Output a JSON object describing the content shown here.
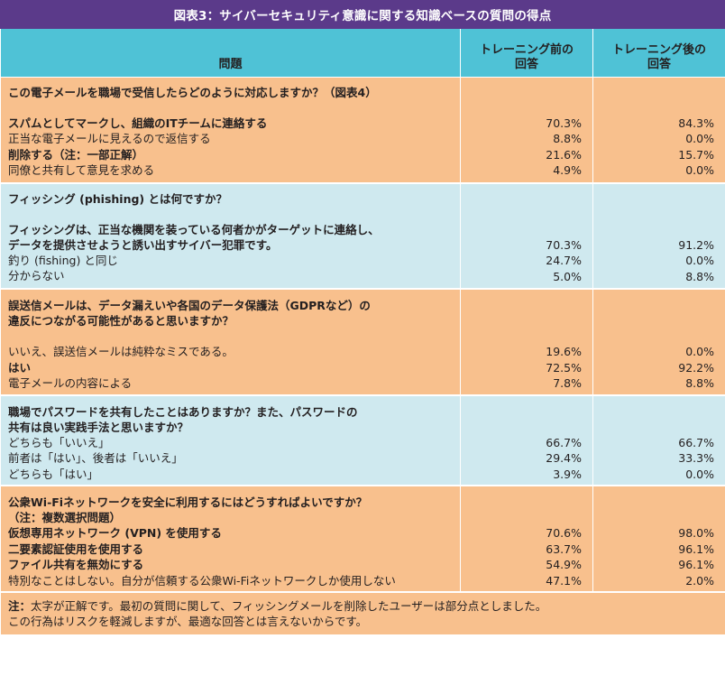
{
  "title": "図表3：サイバーセキュリティ意識に関する知識ベースの質問の得点",
  "headers": {
    "question": "問題",
    "before": "トレーニング前の\n回答",
    "after": "トレーニング後の\n回答"
  },
  "colors": {
    "title_bg": "#5b3a8a",
    "header_bg": "#4fc2d6",
    "orange": "#f8c08d",
    "blue": "#cfe9ef"
  },
  "sections": [
    {
      "theme": "orange",
      "question": "この電子メールを職場で受信したらどのように対応しますか？（図表4）",
      "gap_after_question": true,
      "answers": [
        {
          "text": "スパムとしてマークし、組織のITチームに連絡する",
          "bold": true,
          "before": "70.3%",
          "after": "84.3%"
        },
        {
          "text": "正当な電子メールに見えるので返信する",
          "bold": false,
          "before": "8.8%",
          "after": "0.0%"
        },
        {
          "text": "削除する（注：一部正解）",
          "bold": true,
          "before": "21.6%",
          "after": "15.7%"
        },
        {
          "text": "同僚と共有して意見を求める",
          "bold": false,
          "before": "4.9%",
          "after": "0.0%"
        }
      ]
    },
    {
      "theme": "blue",
      "question": "フィッシング (phishing) とは何ですか？",
      "gap_after_question": true,
      "answers": [
        {
          "text": "フィッシングは、正当な機関を装っている何者かがターゲットに連絡し、\nデータを提供させようと誘い出すサイバー犯罪です。",
          "bold": true,
          "multiline": true,
          "before": "70.3%",
          "after": "91.2%"
        },
        {
          "text": "釣り (fishing) と同じ",
          "bold": false,
          "before": "24.7%",
          "after": "0.0%"
        },
        {
          "text": "分からない",
          "bold": false,
          "before": "5.0%",
          "after": "8.8%"
        }
      ]
    },
    {
      "theme": "orange",
      "question": "誤送信メールは、データ漏えいや各国のデータ保護法（GDPRなど）の\n違反につながる可能性があると思いますか？",
      "gap_after_question": true,
      "answers": [
        {
          "text": "いいえ、誤送信メールは純粋なミスである。",
          "bold": false,
          "before": "19.6%",
          "after": "0.0%"
        },
        {
          "text": "はい",
          "bold": true,
          "before": "72.5%",
          "after": "92.2%"
        },
        {
          "text": "電子メールの内容による",
          "bold": false,
          "before": "7.8%",
          "after": "8.8%"
        }
      ]
    },
    {
      "theme": "blue",
      "question": "職場でパスワードを共有したことはありますか？また、パスワードの\n共有は良い実践手法と思いますか？",
      "gap_after_question": false,
      "answers": [
        {
          "text": "どちらも「いいえ」",
          "bold": false,
          "before": "66.7%",
          "after": "66.7%"
        },
        {
          "text": "前者は「はい」、後者は「いいえ」",
          "bold": false,
          "before": "29.4%",
          "after": "33.3%"
        },
        {
          "text": "どちらも「はい」",
          "bold": false,
          "before": "3.9%",
          "after": "0.0%"
        }
      ]
    },
    {
      "theme": "orange",
      "question": "公衆Wi-Fiネットワークを安全に利用するにはどうすればよいですか？\n（注：複数選択問題）",
      "gap_after_question": false,
      "answers": [
        {
          "text": "仮想専用ネットワーク (VPN) を使用する",
          "bold": true,
          "before": "70.6%",
          "after": "98.0%"
        },
        {
          "text": "二要素認証使用を使用する",
          "bold": true,
          "before": "63.7%",
          "after": "96.1%"
        },
        {
          "text": "ファイル共有を無効にする",
          "bold": true,
          "before": "54.9%",
          "after": "96.1%"
        },
        {
          "text": "特別なことはしない。自分が信頼する公衆Wi-Fiネットワークしか使用しない",
          "bold": false,
          "before": "47.1%",
          "after": "2.0%"
        }
      ]
    }
  ],
  "note": {
    "label": "注：",
    "text": "太字が正解です。最初の質問に関して、フィッシングメールを削除したユーザーは部分点としました。\nこの行為はリスクを軽減しますが、最適な回答とは言えないからです。"
  }
}
